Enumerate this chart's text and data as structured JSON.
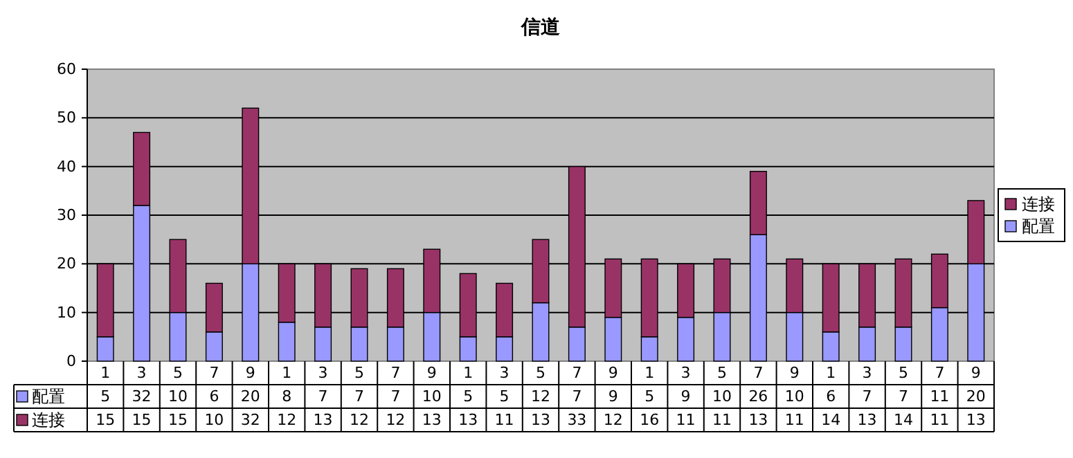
{
  "chart_data": {
    "type": "bar",
    "title": "信道",
    "stacked": true,
    "grid": "y",
    "legend": "right",
    "data_labels": true,
    "categories": [
      "1",
      "3",
      "5",
      "7",
      "9",
      "1",
      "3",
      "5",
      "7",
      "9",
      "1",
      "3",
      "5",
      "7",
      "9",
      "1",
      "3",
      "5",
      "7",
      "9",
      "1",
      "3",
      "5",
      "7",
      "9"
    ],
    "ylim": [
      0,
      60
    ],
    "yticks": [
      0,
      10,
      20,
      30,
      40,
      50,
      60
    ],
    "series": [
      {
        "name": "配置",
        "color": "#9999ff",
        "values": [
          5,
          32,
          10,
          6,
          20,
          8,
          7,
          7,
          7,
          10,
          5,
          5,
          12,
          7,
          9,
          5,
          9,
          10,
          26,
          10,
          6,
          7,
          7,
          11,
          20
        ]
      },
      {
        "name": "连接",
        "color": "#993366",
        "values": [
          15,
          15,
          15,
          10,
          32,
          12,
          13,
          12,
          12,
          13,
          13,
          11,
          13,
          33,
          12,
          16,
          11,
          11,
          13,
          11,
          14,
          13,
          14,
          11,
          13
        ]
      }
    ]
  }
}
